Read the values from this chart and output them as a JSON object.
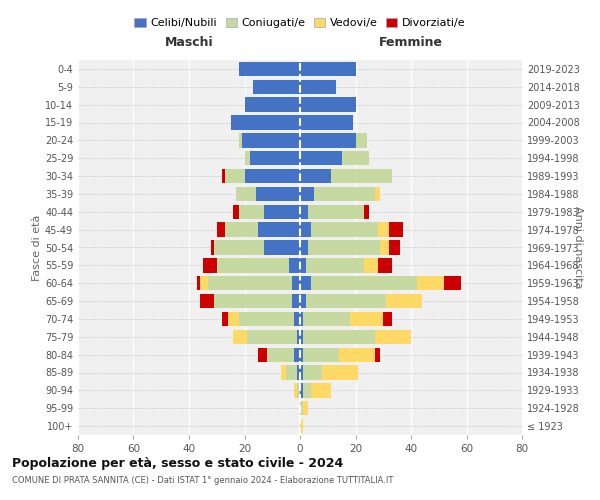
{
  "age_groups": [
    "100+",
    "95-99",
    "90-94",
    "85-89",
    "80-84",
    "75-79",
    "70-74",
    "65-69",
    "60-64",
    "55-59",
    "50-54",
    "45-49",
    "40-44",
    "35-39",
    "30-34",
    "25-29",
    "20-24",
    "15-19",
    "10-14",
    "5-9",
    "0-4"
  ],
  "birth_years": [
    "≤ 1923",
    "1924-1928",
    "1929-1933",
    "1934-1938",
    "1939-1943",
    "1944-1948",
    "1949-1953",
    "1954-1958",
    "1959-1963",
    "1964-1968",
    "1969-1973",
    "1974-1978",
    "1979-1983",
    "1984-1988",
    "1989-1993",
    "1994-1998",
    "1999-2003",
    "2004-2008",
    "2009-2013",
    "2014-2018",
    "2019-2023"
  ],
  "maschi": {
    "celibe": [
      0,
      0,
      0,
      1,
      2,
      1,
      2,
      3,
      3,
      4,
      13,
      15,
      13,
      16,
      20,
      18,
      21,
      25,
      20,
      17,
      22
    ],
    "coniugato": [
      0,
      0,
      1,
      4,
      10,
      18,
      20,
      28,
      30,
      26,
      18,
      12,
      9,
      7,
      7,
      2,
      1,
      0,
      0,
      0,
      0
    ],
    "vedovo": [
      0,
      0,
      1,
      2,
      0,
      5,
      4,
      0,
      3,
      0,
      0,
      0,
      0,
      0,
      0,
      0,
      0,
      0,
      0,
      0,
      0
    ],
    "divorziato": [
      0,
      0,
      0,
      0,
      3,
      0,
      2,
      5,
      1,
      5,
      1,
      3,
      2,
      0,
      1,
      0,
      0,
      0,
      0,
      0,
      0
    ]
  },
  "femmine": {
    "nubile": [
      0,
      0,
      1,
      1,
      1,
      1,
      1,
      2,
      4,
      2,
      3,
      4,
      3,
      5,
      11,
      15,
      20,
      19,
      20,
      13,
      20
    ],
    "coniugata": [
      0,
      1,
      3,
      7,
      13,
      26,
      17,
      29,
      38,
      21,
      26,
      24,
      20,
      22,
      22,
      10,
      4,
      0,
      0,
      0,
      0
    ],
    "vedova": [
      1,
      2,
      7,
      13,
      13,
      13,
      12,
      13,
      10,
      5,
      3,
      4,
      0,
      2,
      0,
      0,
      0,
      0,
      0,
      0,
      0
    ],
    "divorziata": [
      0,
      0,
      0,
      0,
      2,
      0,
      3,
      0,
      6,
      5,
      4,
      5,
      2,
      0,
      0,
      0,
      0,
      0,
      0,
      0,
      0
    ]
  },
  "colors": {
    "celibe": "#4472C4",
    "coniugato": "#C5D9A0",
    "vedovo": "#FFD966",
    "divorziato": "#CC0000"
  },
  "title": "Popolazione per età, sesso e stato civile - 2024",
  "subtitle": "COMUNE DI PRATA SANNITA (CE) - Dati ISTAT 1° gennaio 2024 - Elaborazione TUTTITALIA.IT",
  "xlabel_left": "Maschi",
  "xlabel_right": "Femmine",
  "ylabel_left": "Fasce di età",
  "ylabel_right": "Anni di nascita",
  "xlim": 80,
  "legend_labels": [
    "Celibi/Nubili",
    "Coniugati/e",
    "Vedovi/e",
    "Divorziati/e"
  ],
  "bg_color": "#f0f0f0"
}
